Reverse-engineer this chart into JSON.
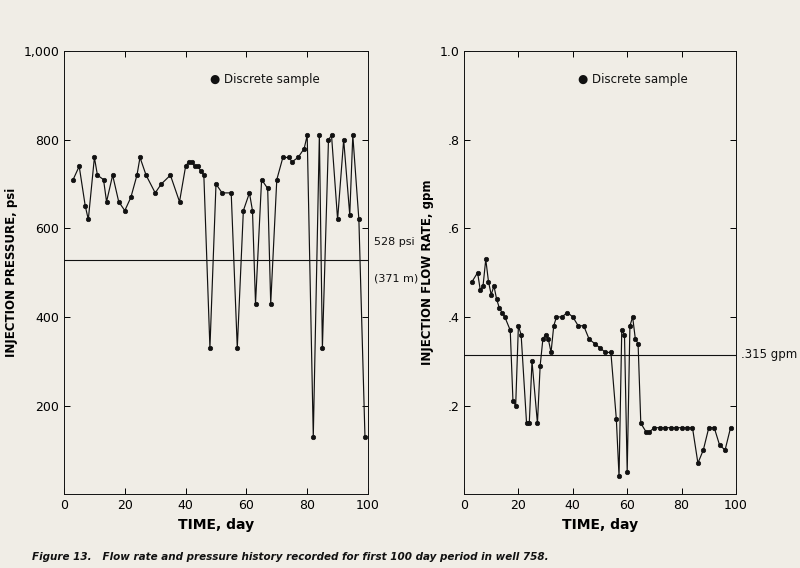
{
  "pressure_time": [
    3,
    5,
    7,
    8,
    10,
    11,
    13,
    14,
    16,
    18,
    20,
    22,
    24,
    25,
    27,
    30,
    32,
    35,
    38,
    40,
    41,
    42,
    43,
    44,
    45,
    46,
    48,
    50,
    52,
    55,
    57,
    59,
    61,
    62,
    63,
    65,
    67,
    68,
    70,
    72,
    74,
    75,
    77,
    79,
    80,
    82,
    84,
    85,
    87,
    88,
    90,
    92,
    94,
    95,
    97,
    99
  ],
  "pressure_values": [
    710,
    740,
    650,
    620,
    760,
    720,
    710,
    660,
    720,
    660,
    640,
    670,
    720,
    760,
    720,
    680,
    700,
    720,
    660,
    740,
    750,
    750,
    740,
    740,
    730,
    720,
    330,
    700,
    680,
    680,
    330,
    640,
    680,
    640,
    430,
    710,
    690,
    430,
    710,
    760,
    760,
    750,
    760,
    780,
    810,
    130,
    810,
    330,
    800,
    810,
    620,
    800,
    630,
    810,
    620,
    130
  ],
  "flow_time": [
    3,
    5,
    6,
    7,
    8,
    9,
    10,
    11,
    12,
    13,
    14,
    15,
    17,
    18,
    19,
    20,
    21,
    23,
    24,
    25,
    27,
    28,
    29,
    30,
    31,
    32,
    33,
    34,
    36,
    38,
    40,
    42,
    44,
    46,
    48,
    50,
    52,
    54,
    56,
    57,
    58,
    59,
    60,
    61,
    62,
    63,
    64,
    65,
    67,
    68,
    70,
    72,
    74,
    76,
    78,
    80,
    82,
    84,
    86,
    88,
    90,
    92,
    94,
    96,
    98
  ],
  "flow_values": [
    0.48,
    0.5,
    0.46,
    0.47,
    0.53,
    0.48,
    0.45,
    0.47,
    0.44,
    0.42,
    0.41,
    0.4,
    0.37,
    0.21,
    0.2,
    0.38,
    0.36,
    0.16,
    0.16,
    0.3,
    0.16,
    0.29,
    0.35,
    0.36,
    0.35,
    0.32,
    0.38,
    0.4,
    0.4,
    0.41,
    0.4,
    0.38,
    0.38,
    0.35,
    0.34,
    0.33,
    0.32,
    0.32,
    0.17,
    0.04,
    0.37,
    0.36,
    0.05,
    0.38,
    0.4,
    0.35,
    0.34,
    0.16,
    0.14,
    0.14,
    0.15,
    0.15,
    0.15,
    0.15,
    0.15,
    0.15,
    0.15,
    0.15,
    0.07,
    0.1,
    0.15,
    0.15,
    0.11,
    0.1,
    0.15
  ],
  "pressure_hline": 528,
  "pressure_hline_label1": "528 psi",
  "pressure_hline_label2": "(371 m)",
  "flow_hline": 0.315,
  "flow_hline_label": ".315 gpm",
  "pressure_ylim": [
    0,
    1000
  ],
  "pressure_yticks": [
    200,
    400,
    600,
    800,
    1000
  ],
  "pressure_ytick_labels": [
    "200",
    "400",
    "600",
    "800",
    "1,000"
  ],
  "flow_ylim": [
    0,
    1.0
  ],
  "flow_yticks": [
    0.2,
    0.4,
    0.6,
    0.8,
    1.0
  ],
  "flow_ytick_labels": [
    ".2",
    ".4",
    ".6",
    ".8",
    "1.0"
  ],
  "xlim": [
    0,
    100
  ],
  "xticks": [
    0,
    20,
    40,
    60,
    80,
    100
  ],
  "xlabel": "TIME, day",
  "ylabel_pressure": "INJECTION PRESSURE, psi",
  "ylabel_flow": "INJECTION FLOW RATE, gpm",
  "legend_label": "Discrete sample",
  "figure_caption": "Figure 13.   Flow rate and pressure history recorded for first 100 day period in well 758.",
  "bg_color": "#f0ede6",
  "plot_bg": "#f0ede6",
  "line_color": "#111111",
  "text_color": "#111111"
}
